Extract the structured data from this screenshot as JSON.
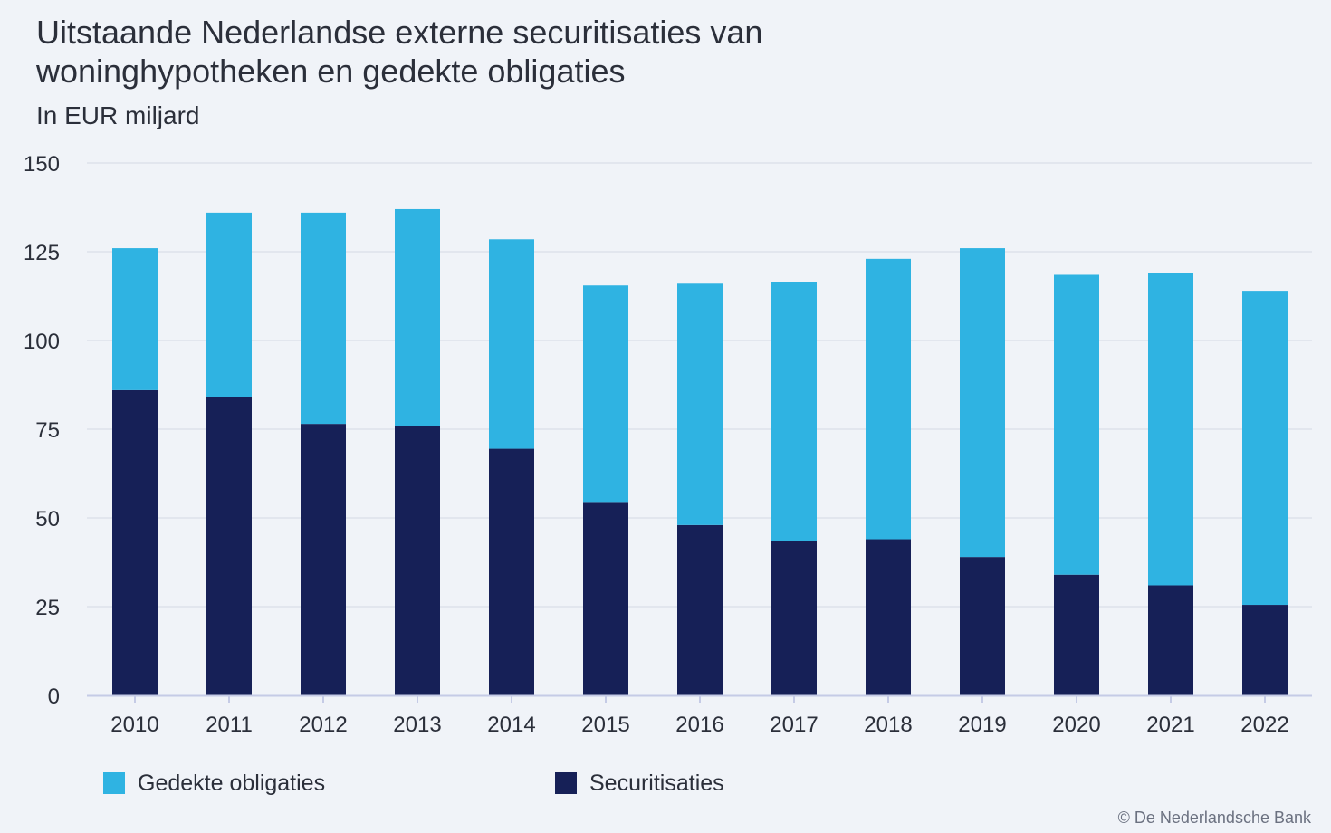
{
  "header": {
    "title": "Uitstaande Nederlandse externe securitisaties van woninghypotheken en gedekte obligaties",
    "subtitle": "In EUR miljard"
  },
  "footer": {
    "credit": "© De Nederlandsche Bank"
  },
  "colors": {
    "securitisaties": "#162057",
    "gedekte_obligaties": "#2fb3e2",
    "grid": "#dde2ea",
    "axis": "#c5cbe6",
    "text": "#2b2f3a"
  },
  "chart_data": {
    "type": "bar",
    "stacked": true,
    "categories": [
      "2010",
      "2011",
      "2012",
      "2013",
      "2014",
      "2015",
      "2016",
      "2017",
      "2018",
      "2019",
      "2020",
      "2021",
      "2022"
    ],
    "series": [
      {
        "name": "Securitisaties",
        "color": "#162057",
        "values": [
          86,
          84,
          76.5,
          76,
          69.5,
          54.5,
          48,
          43.5,
          44,
          39,
          34,
          31,
          25.5
        ]
      },
      {
        "name": "Gedekte obligaties",
        "color": "#2fb3e2",
        "values": [
          40,
          52,
          59.5,
          61,
          59,
          61,
          68,
          73,
          79,
          87,
          84.5,
          88,
          88.5
        ]
      }
    ],
    "yticks": [
      0,
      25,
      50,
      75,
      100,
      125,
      150
    ],
    "ylim": [
      0,
      150
    ],
    "xlabel": "",
    "ylabel": "",
    "grid": true,
    "legend_position": "bottom-left",
    "legend_order": [
      "Gedekte obligaties",
      "Securitisaties"
    ]
  }
}
